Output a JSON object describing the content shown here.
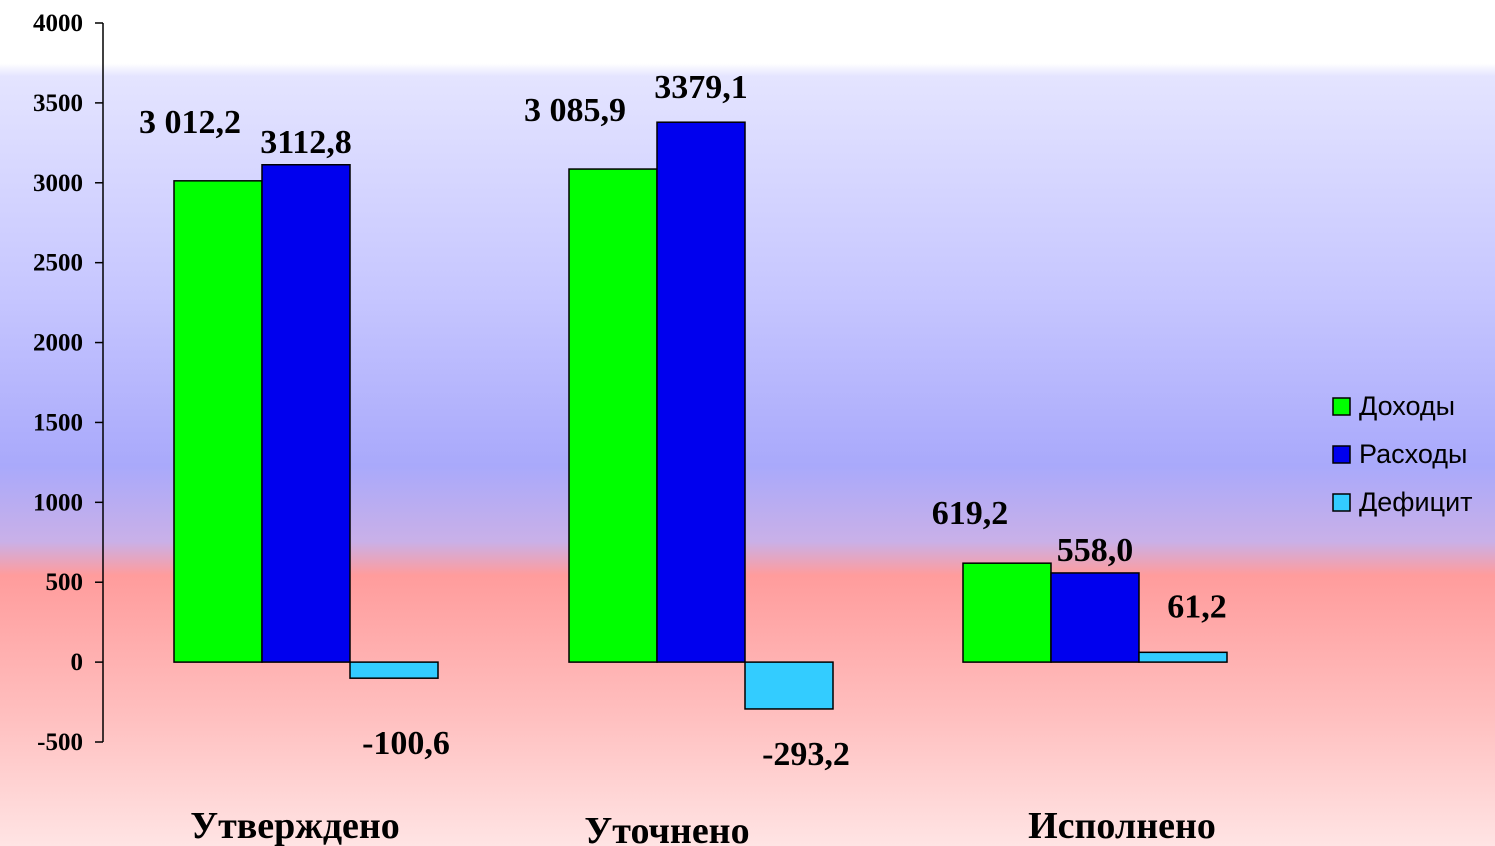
{
  "chart_data": {
    "type": "bar",
    "categories": [
      "Утверждено",
      "Уточнено",
      "Исполнено"
    ],
    "series": [
      {
        "name": "Доходы",
        "values": [
          3012.2,
          3085.9,
          619.2
        ],
        "labels": [
          "3 012,2",
          "3 085,9",
          "619,2"
        ],
        "color": "#00ff00"
      },
      {
        "name": "Расходы",
        "values": [
          3112.8,
          3379.1,
          558.0
        ],
        "labels": [
          "3112,8",
          "3379,1",
          "558,0"
        ],
        "color": "#0000ee"
      },
      {
        "name": "Дефицит",
        "values": [
          -100.6,
          -293.2,
          61.2
        ],
        "labels": [
          "-100,6",
          "-293,2",
          "61,2"
        ],
        "color": "#33ccff"
      }
    ],
    "ylim": [
      -500,
      4000
    ],
    "yticks": [
      -500,
      0,
      500,
      1000,
      1500,
      2000,
      2500,
      3000,
      3500,
      4000
    ],
    "legend": "right",
    "grid": false,
    "background_colors": {
      "top": "#ffffff",
      "middle": "#a9a9ff",
      "bottom": "#ff9a9a"
    }
  }
}
